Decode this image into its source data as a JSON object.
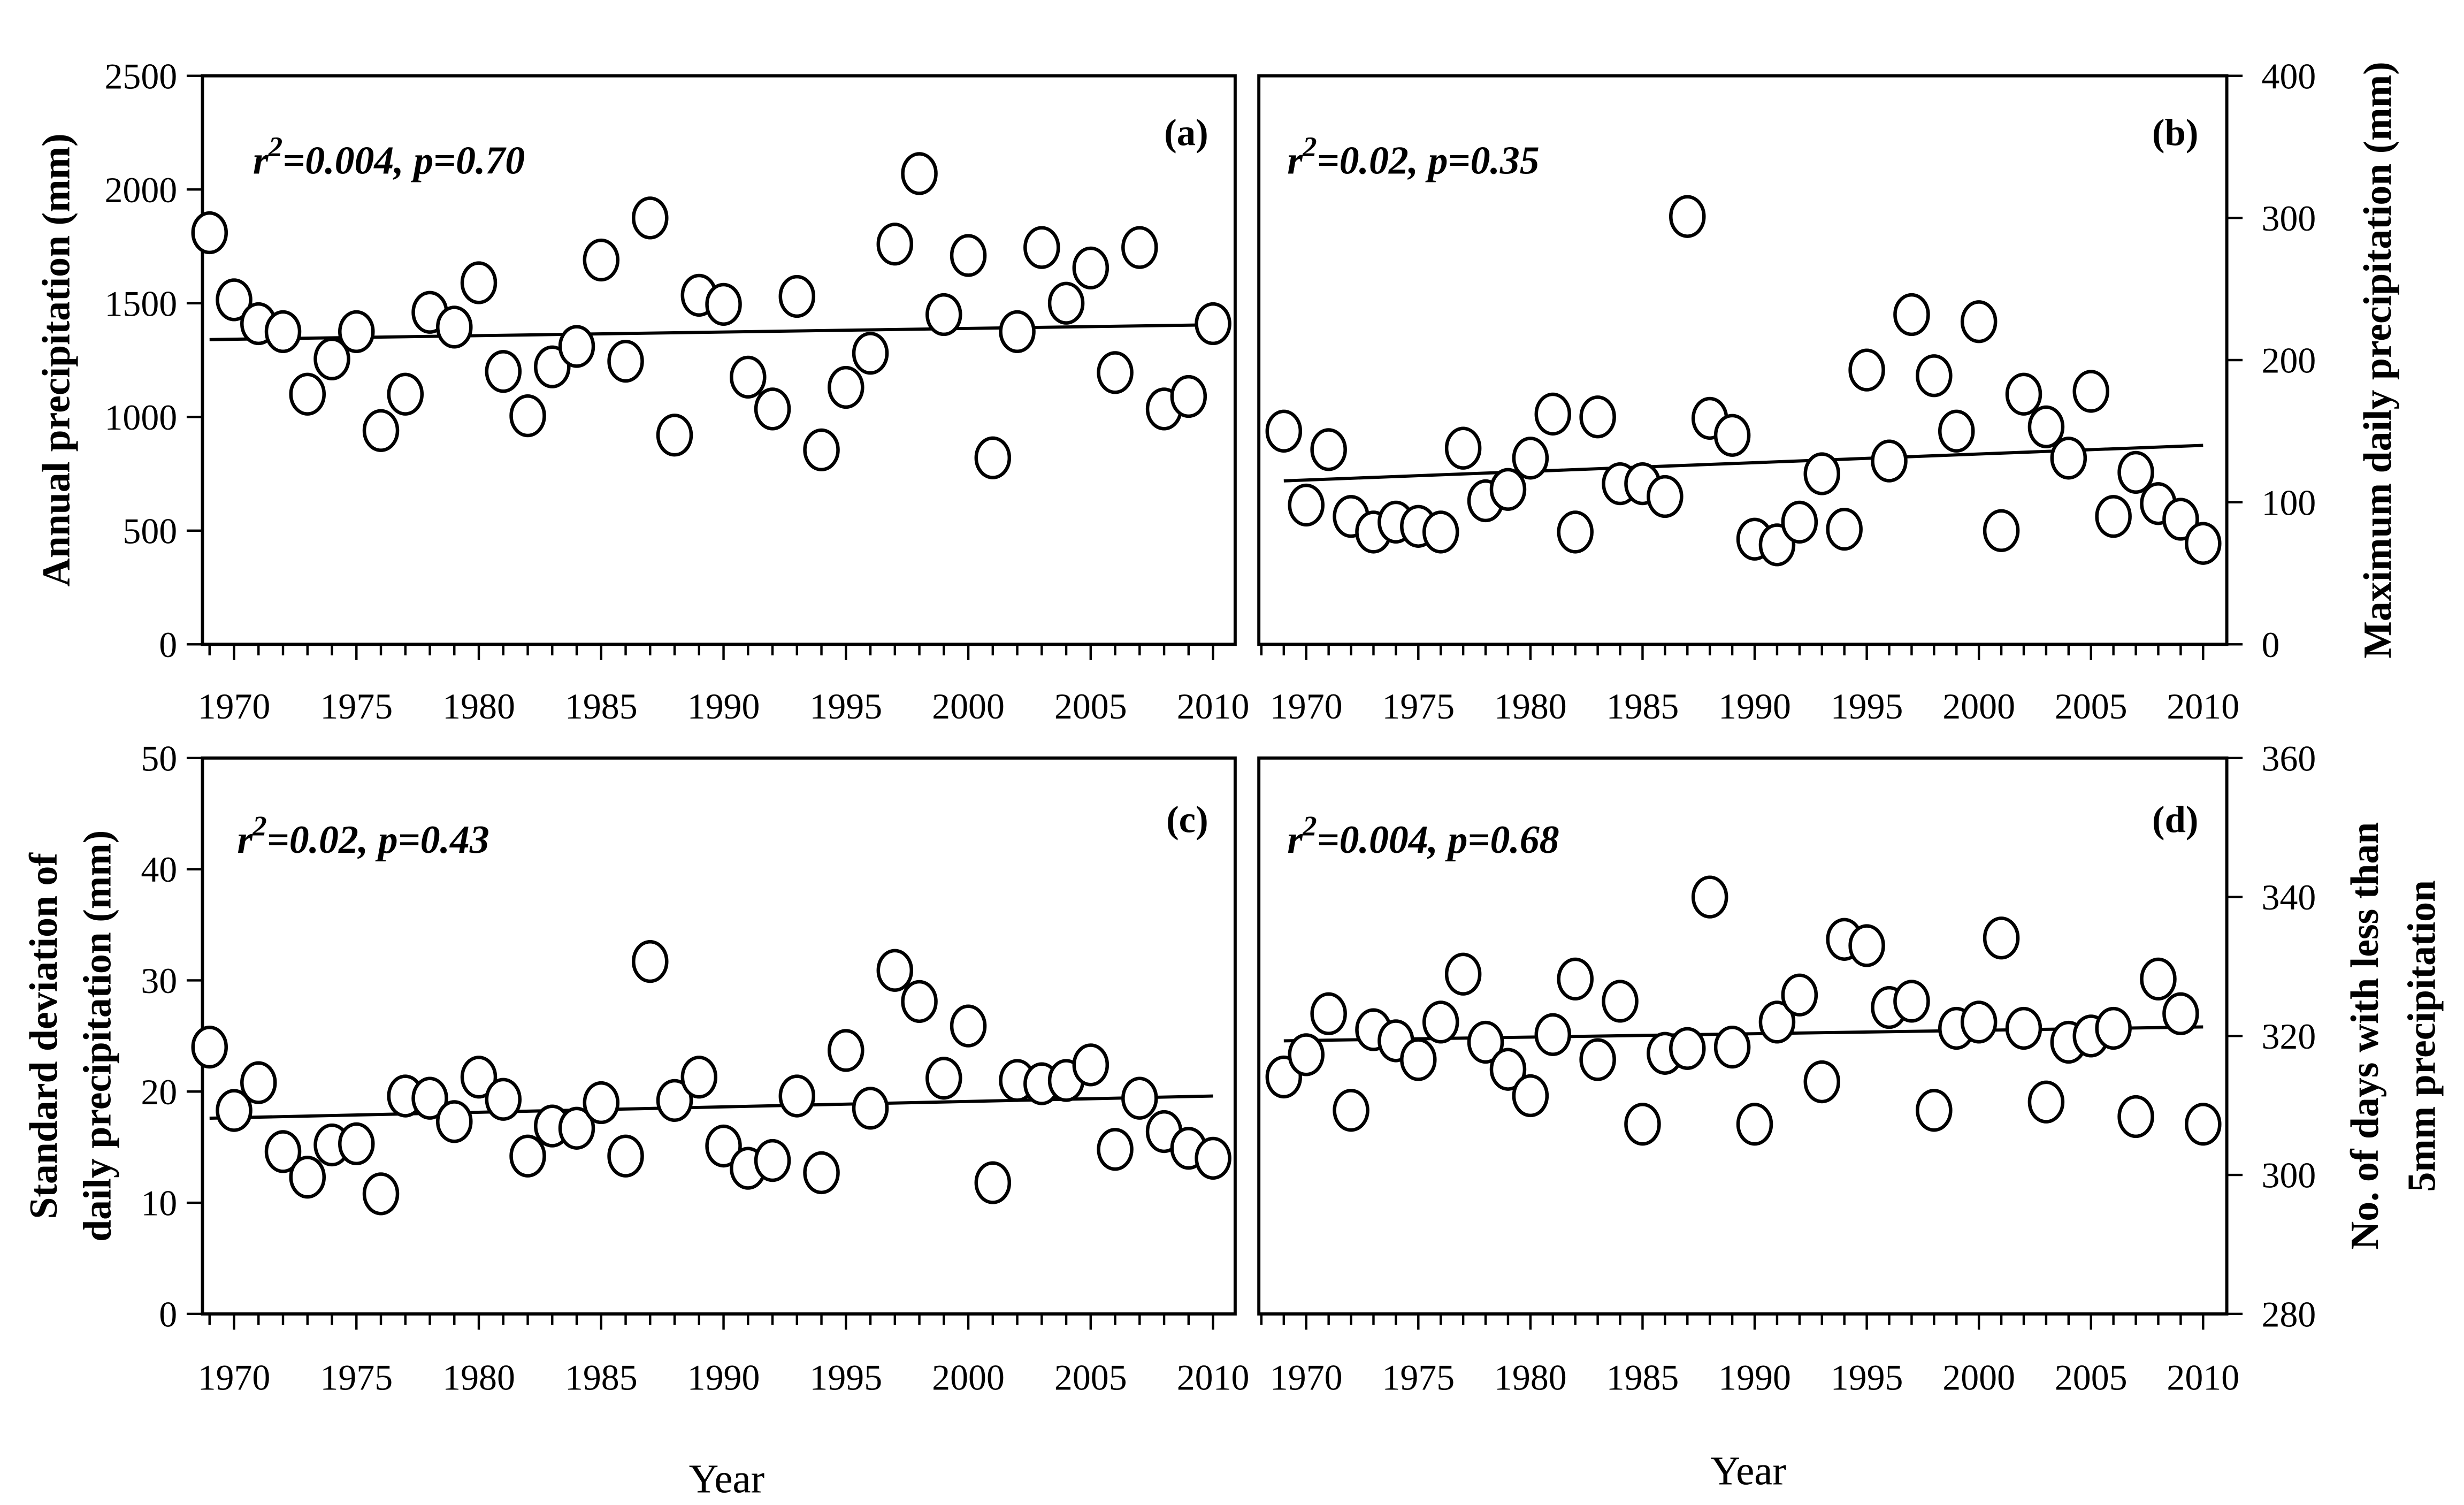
{
  "chart_data": [
    {
      "id": "a",
      "type": "scatter",
      "panel_label": "(a)",
      "annotation": {
        "r": "r",
        "sup": "2",
        "rest": "=0.004, p=0.70"
      },
      "xlabel": "Year",
      "ylabel": [
        "Annual precipitation (mm)"
      ],
      "yaxis_side": "left",
      "ylim": [
        0,
        2500
      ],
      "yticks": [
        0,
        500,
        1000,
        1500,
        2000,
        2500
      ],
      "xticks": [
        1970,
        1975,
        1980,
        1985,
        1990,
        1995,
        2000,
        2005,
        2010
      ],
      "x": [
        1969,
        1970,
        1971,
        1972,
        1973,
        1974,
        1975,
        1976,
        1977,
        1978,
        1979,
        1980,
        1981,
        1982,
        1983,
        1984,
        1985,
        1986,
        1987,
        1988,
        1989,
        1990,
        1991,
        1992,
        1993,
        1994,
        1995,
        1996,
        1997,
        1998,
        1999,
        2000,
        2001,
        2002,
        2003,
        2004,
        2005,
        2006,
        2007,
        2008,
        2009,
        2010
      ],
      "y": [
        1810,
        1515,
        1410,
        1375,
        1100,
        1255,
        1375,
        940,
        1100,
        1460,
        1395,
        1590,
        1200,
        1005,
        1220,
        1310,
        1690,
        1245,
        1875,
        920,
        1535,
        1495,
        1175,
        1035,
        1530,
        855,
        1130,
        1280,
        1760,
        2070,
        1450,
        1710,
        820,
        1375,
        1745,
        1500,
        1655,
        1195,
        1745,
        1035,
        1090,
        1410
      ],
      "trend": {
        "x": [
          1969,
          2010
        ],
        "y": [
          1340,
          1405
        ]
      }
    },
    {
      "id": "b",
      "type": "scatter",
      "panel_label": "(b)",
      "annotation": {
        "r": "r",
        "sup": "2",
        "rest": "=0.02, p=0.35"
      },
      "xlabel": "Year",
      "ylabel": [
        "Maximum daily precipitation (mm)"
      ],
      "yaxis_side": "right",
      "ylim": [
        0,
        400
      ],
      "yticks": [
        0,
        100,
        200,
        300,
        400
      ],
      "xticks": [
        1970,
        1975,
        1980,
        1985,
        1990,
        1995,
        2000,
        2005,
        2010
      ],
      "x": [
        1969,
        1970,
        1971,
        1972,
        1973,
        1974,
        1975,
        1976,
        1977,
        1978,
        1979,
        1980,
        1981,
        1982,
        1983,
        1984,
        1985,
        1986,
        1987,
        1988,
        1989,
        1990,
        1991,
        1992,
        1993,
        1994,
        1995,
        1996,
        1997,
        1998,
        1999,
        2000,
        2001,
        2002,
        2003,
        2004,
        2005,
        2006,
        2007,
        2008,
        2009,
        2010
      ],
      "y": [
        150,
        98,
        137,
        90,
        79,
        86,
        83,
        79,
        138,
        101,
        109,
        131,
        162,
        79,
        160,
        113,
        113,
        104,
        301,
        159,
        147,
        74,
        70,
        86,
        120,
        81,
        193,
        129,
        232,
        189,
        150,
        227,
        80,
        176,
        153,
        131,
        178,
        90,
        121,
        99,
        88,
        71
      ],
      "trend": {
        "x": [
          1969,
          2010
        ],
        "y": [
          115,
          140
        ]
      }
    },
    {
      "id": "c",
      "type": "scatter",
      "panel_label": "(c)",
      "annotation": {
        "r": "r",
        "sup": "2",
        "rest": "=0.02, p=0.43"
      },
      "xlabel": "Year",
      "ylabel": [
        "Standard deviation of",
        "daily precipitation (mm)"
      ],
      "yaxis_side": "left",
      "ylim": [
        0,
        50
      ],
      "yticks": [
        0,
        10,
        20,
        30,
        40,
        50
      ],
      "xticks": [
        1970,
        1975,
        1980,
        1985,
        1990,
        1995,
        2000,
        2005,
        2010
      ],
      "x": [
        1969,
        1970,
        1971,
        1972,
        1973,
        1974,
        1975,
        1976,
        1977,
        1978,
        1979,
        1980,
        1981,
        1982,
        1983,
        1984,
        1985,
        1986,
        1987,
        1988,
        1989,
        1990,
        1991,
        1992,
        1993,
        1994,
        1995,
        1996,
        1997,
        1998,
        1999,
        2000,
        2001,
        2002,
        2003,
        2004,
        2005,
        2006,
        2007,
        2008,
        2009,
        2010
      ],
      "y": [
        24.0,
        18.3,
        20.8,
        14.6,
        12.3,
        15.2,
        15.3,
        10.8,
        19.6,
        19.4,
        17.3,
        21.3,
        19.3,
        14.2,
        16.9,
        16.7,
        19.0,
        14.2,
        31.7,
        19.2,
        21.3,
        15.1,
        13.1,
        13.8,
        19.6,
        12.7,
        23.7,
        18.5,
        30.9,
        28.1,
        21.2,
        25.9,
        11.8,
        21.0,
        20.7,
        21.0,
        22.4,
        14.8,
        19.4,
        16.4,
        14.9,
        14.0
      ],
      "trend": {
        "x": [
          1969,
          2010
        ],
        "y": [
          17.6,
          19.6
        ]
      }
    },
    {
      "id": "d",
      "type": "scatter",
      "panel_label": "(d)",
      "annotation": {
        "r": "r",
        "sup": "2",
        "rest": "=0.004, p=0.68"
      },
      "xlabel": "Year",
      "ylabel": [
        "No. of days with less than",
        "5mm precipitation"
      ],
      "yaxis_side": "right",
      "ylim": [
        280,
        360
      ],
      "yticks": [
        280,
        300,
        320,
        340,
        360
      ],
      "xticks": [
        1970,
        1975,
        1980,
        1985,
        1990,
        1995,
        2000,
        2005,
        2010
      ],
      "x": [
        1969,
        1970,
        1971,
        1972,
        1973,
        1974,
        1975,
        1976,
        1977,
        1978,
        1979,
        1980,
        1981,
        1982,
        1983,
        1984,
        1985,
        1986,
        1987,
        1988,
        1989,
        1990,
        1991,
        1992,
        1993,
        1994,
        1995,
        1996,
        1997,
        1998,
        1999,
        2000,
        2001,
        2002,
        2003,
        2004,
        2005,
        2006,
        2007,
        2008,
        2009,
        2010
      ],
      "y": [
        314.1,
        317.3,
        323.2,
        309.3,
        320.9,
        319.3,
        316.6,
        322.0,
        328.9,
        319.1,
        315.2,
        311.4,
        320.2,
        328.2,
        316.6,
        325.0,
        307.3,
        317.5,
        318.2,
        340.0,
        318.4,
        307.3,
        322.0,
        325.9,
        313.4,
        333.9,
        333.0,
        324.1,
        325.0,
        309.3,
        321.1,
        322.0,
        334.1,
        321.1,
        310.5,
        319.1,
        320.0,
        321.1,
        308.4,
        328.2,
        323.2,
        307.3
      ],
      "trend": {
        "x": [
          1969,
          2010
        ],
        "y": [
          319.3,
          321.3
        ]
      }
    }
  ]
}
